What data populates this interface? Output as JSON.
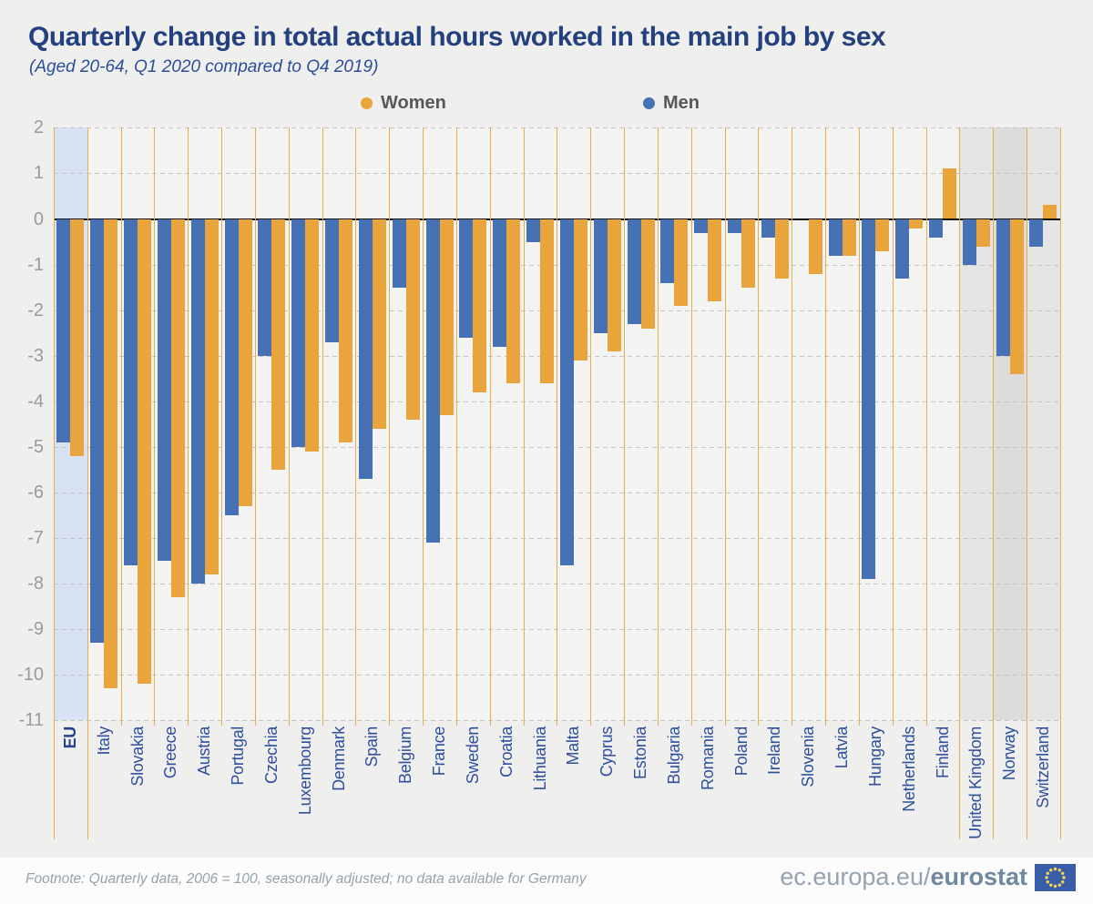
{
  "header": {
    "title": "Quarterly change in total actual hours worked in the main job by sex",
    "subtitle": "(Aged 20-64, Q1 2020 compared to Q4 2019)"
  },
  "legend": [
    {
      "label": "Women",
      "color": "#EAA43C"
    },
    {
      "label": "Men",
      "color": "#4671B5"
    }
  ],
  "chart_data": {
    "type": "bar",
    "title": "Quarterly change in total actual hours worked in the main job by sex",
    "subtitle": "(Aged 20-64, Q1 2020 compared to Q4 2019)",
    "categories": [
      "EU",
      "Italy",
      "Slovakia",
      "Greece",
      "Austria",
      "Portugal",
      "Czechia",
      "Luxembourg",
      "Denmark",
      "Spain",
      "Belgium",
      "France",
      "Sweden",
      "Croatia",
      "Lithuania",
      "Malta",
      "Cyprus",
      "Estonia",
      "Bulgaria",
      "Romania",
      "Poland",
      "Ireland",
      "Slovenia",
      "Latvia",
      "Hungary",
      "Netherlands",
      "Finland",
      "United Kingdom",
      "Norway",
      "Switzerland"
    ],
    "series": [
      {
        "name": "Women",
        "color": "#EAA43C",
        "values": [
          -5.2,
          -10.3,
          -10.2,
          -8.3,
          -7.8,
          -6.3,
          -5.5,
          -5.1,
          -4.9,
          -4.6,
          -4.4,
          -4.3,
          -3.8,
          -3.6,
          -3.6,
          -3.1,
          -2.9,
          -2.4,
          -1.9,
          -1.8,
          -1.5,
          -1.3,
          -1.2,
          -0.8,
          -0.7,
          -0.2,
          1.1,
          -0.6,
          -3.4,
          0.3
        ]
      },
      {
        "name": "Men",
        "color": "#4671B5",
        "values": [
          -4.9,
          -9.3,
          -7.6,
          -7.5,
          -8.0,
          -6.5,
          -3.0,
          -5.0,
          -2.7,
          -5.7,
          -1.5,
          -7.1,
          -2.6,
          -2.8,
          -0.5,
          -7.6,
          -2.5,
          -2.3,
          -1.4,
          -0.3,
          -0.3,
          -0.4,
          0.0,
          -0.8,
          -7.9,
          -1.3,
          -0.4,
          -1.0,
          -3.0,
          -0.6
        ]
      }
    ],
    "highlights": [
      "eu",
      null,
      null,
      null,
      null,
      null,
      null,
      null,
      null,
      null,
      null,
      null,
      null,
      null,
      null,
      null,
      null,
      null,
      null,
      null,
      null,
      null,
      null,
      null,
      null,
      null,
      null,
      "non-eu",
      "non-eu-dark",
      "non-eu"
    ],
    "ylim": [
      -11,
      2
    ],
    "yticks": [
      2,
      1,
      0,
      -1,
      -2,
      -3,
      -4,
      -5,
      -6,
      -7,
      -8,
      -9,
      -10,
      -11
    ],
    "grid": "horizontal-dashed",
    "legend_position": "top-center"
  },
  "colors": {
    "band_eu": "#D9E2F3",
    "band_non_eu": "#E5E6E4",
    "band_non_eu_dark": "#DCDDDB",
    "separator": "#E9AC4D",
    "zero_line": "#141414",
    "gridline": "#C4C4C4",
    "ytick_text": "#9A9A9A",
    "xlabel_text": "#2E4E9E",
    "title_text": "#24407F",
    "flag_blue": "#3A5DA9",
    "flag_star": "#F7D84D"
  },
  "footer": {
    "footnote": "Footnote: Quarterly data, 2006 = 100, seasonally adjusted; no data available for Germany",
    "site_prefix": "ec.europa.eu/",
    "site_bold": "eurostat",
    "flag_icon": "eu-flag-icon"
  }
}
